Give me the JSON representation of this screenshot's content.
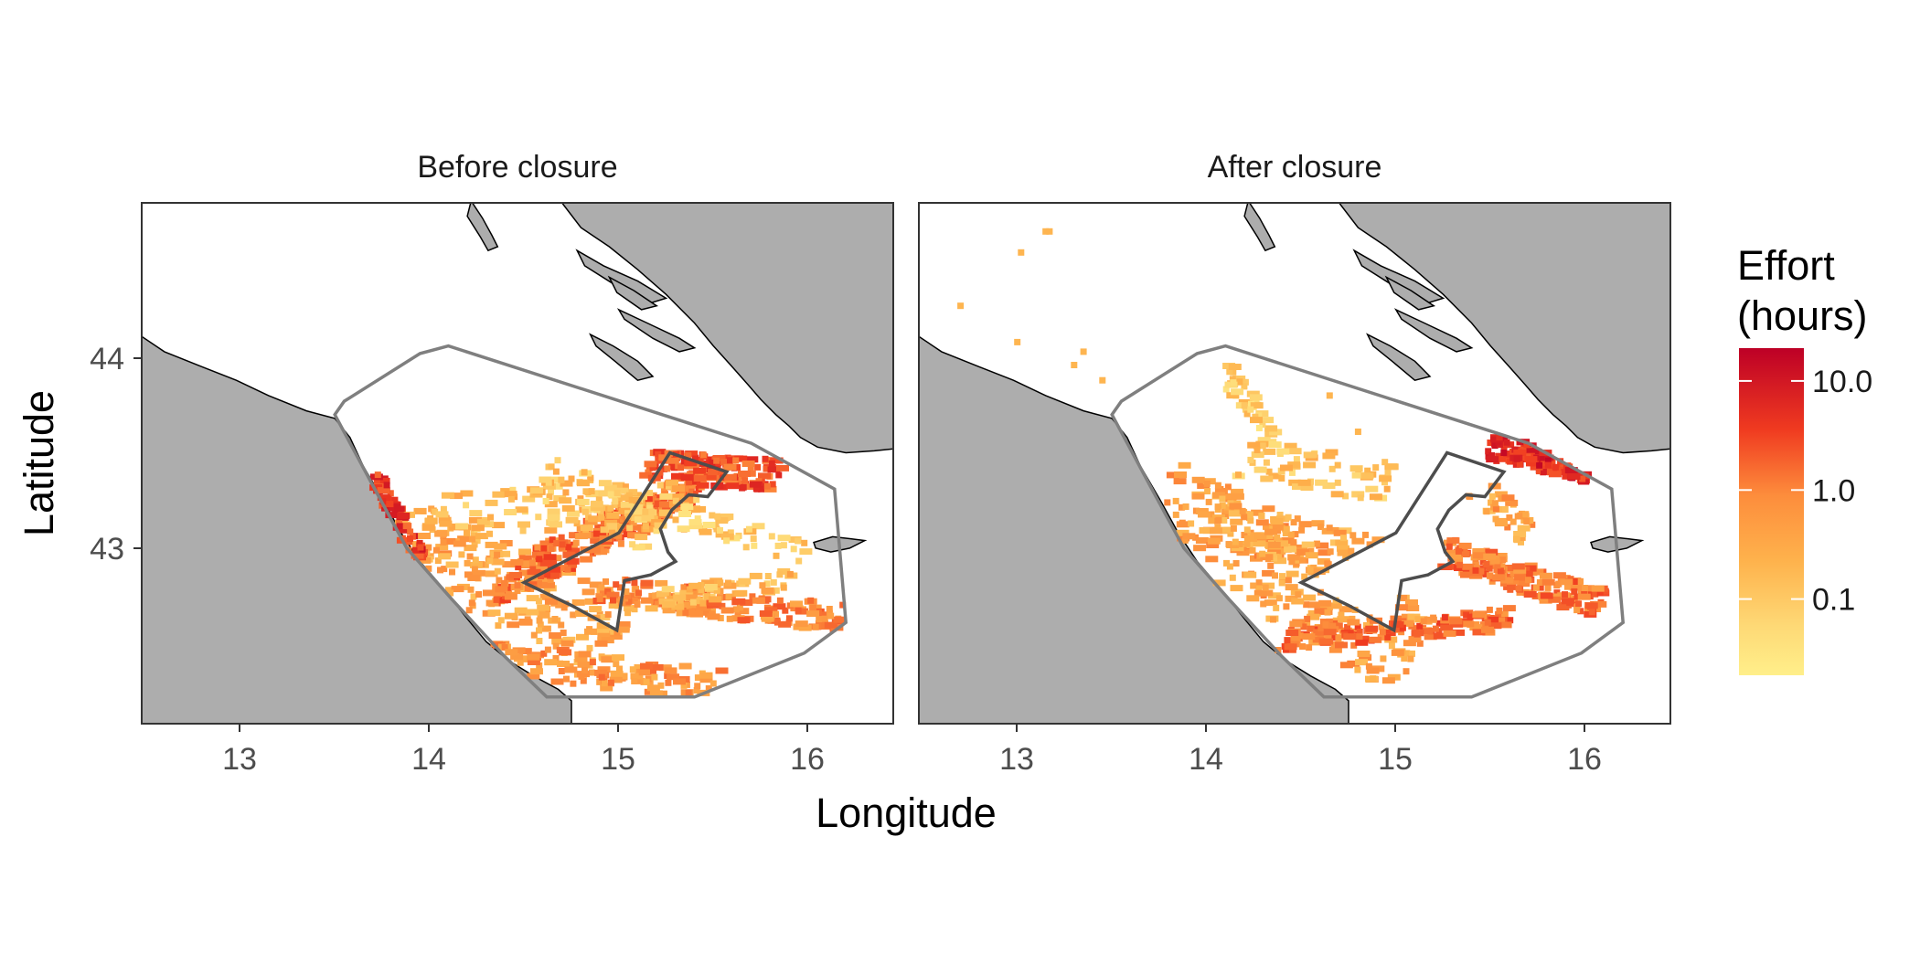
{
  "panels": [
    {
      "id": "before",
      "strip_title": "Before closure"
    },
    {
      "id": "after",
      "strip_title": "After closure"
    }
  ],
  "axes": {
    "x_title": "Longitude",
    "y_title": "Latitude",
    "x_ticks": [
      {
        "value": 13,
        "label": "13"
      },
      {
        "value": 14,
        "label": "14"
      },
      {
        "value": 15,
        "label": "15"
      },
      {
        "value": 16,
        "label": "16"
      }
    ],
    "y_ticks": [
      {
        "value": 44,
        "label": "44"
      },
      {
        "value": 43,
        "label": "43"
      }
    ],
    "x_range": [
      12.48,
      16.45
    ],
    "y_range": [
      42.1,
      44.83
    ]
  },
  "legend": {
    "title_line1": "Effort",
    "title_line2": "(hours)",
    "scale": "log10",
    "range": [
      0.02,
      20
    ],
    "color_low": "#ffef8a",
    "color_mid": "#fd8d3c",
    "color_high": "#bd0026",
    "breaks": [
      {
        "value": 10.0,
        "label": "10.0"
      },
      {
        "value": 1.0,
        "label": "1.0"
      },
      {
        "value": 0.1,
        "label": "0.1"
      }
    ]
  },
  "colors": {
    "land": "#adadad",
    "study_area_outline": "#7f7f7f",
    "closure_outline": "#4d4d4d",
    "panel_border": "#333333"
  },
  "map_data": {
    "coast_west": [
      [
        12.48,
        44.13
      ],
      [
        12.6,
        44.05
      ],
      [
        12.8,
        43.97
      ],
      [
        12.98,
        43.9
      ],
      [
        13.15,
        43.82
      ],
      [
        13.35,
        43.74
      ],
      [
        13.5,
        43.7
      ],
      [
        13.58,
        43.6
      ],
      [
        13.65,
        43.45
      ],
      [
        13.75,
        43.28
      ],
      [
        13.85,
        43.1
      ],
      [
        13.95,
        42.95
      ],
      [
        14.08,
        42.8
      ],
      [
        14.2,
        42.65
      ],
      [
        14.3,
        42.53
      ],
      [
        14.42,
        42.43
      ],
      [
        14.55,
        42.35
      ],
      [
        14.68,
        42.28
      ],
      [
        14.75,
        42.22
      ],
      [
        14.75,
        42.1
      ]
    ],
    "coast_east": [
      [
        14.7,
        44.83
      ],
      [
        14.8,
        44.7
      ],
      [
        14.95,
        44.6
      ],
      [
        15.1,
        44.48
      ],
      [
        15.25,
        44.35
      ],
      [
        15.4,
        44.2
      ],
      [
        15.5,
        44.08
      ],
      [
        15.6,
        43.97
      ],
      [
        15.68,
        43.88
      ],
      [
        15.75,
        43.8
      ],
      [
        15.83,
        43.72
      ],
      [
        15.9,
        43.66
      ],
      [
        15.96,
        43.6
      ],
      [
        16.05,
        43.55
      ],
      [
        16.2,
        43.52
      ],
      [
        16.35,
        43.53
      ],
      [
        16.45,
        43.54
      ]
    ],
    "islands": [
      [
        [
          14.22,
          44.84
        ],
        [
          14.28,
          44.75
        ],
        [
          14.33,
          44.66
        ],
        [
          14.36,
          44.6
        ],
        [
          14.31,
          44.58
        ],
        [
          14.27,
          44.65
        ],
        [
          14.2,
          44.76
        ]
      ],
      [
        [
          14.78,
          44.58
        ],
        [
          14.92,
          44.5
        ],
        [
          15.1,
          44.42
        ],
        [
          15.25,
          44.33
        ],
        [
          15.15,
          44.3
        ],
        [
          14.98,
          44.4
        ],
        [
          14.82,
          44.5
        ]
      ],
      [
        [
          14.95,
          44.44
        ],
        [
          15.08,
          44.37
        ],
        [
          15.2,
          44.29
        ],
        [
          15.12,
          44.27
        ],
        [
          14.99,
          44.36
        ]
      ],
      [
        [
          15.0,
          44.27
        ],
        [
          15.15,
          44.2
        ],
        [
          15.32,
          44.12
        ],
        [
          15.4,
          44.07
        ],
        [
          15.32,
          44.05
        ],
        [
          15.18,
          44.12
        ],
        [
          15.03,
          44.22
        ]
      ],
      [
        [
          14.85,
          44.14
        ],
        [
          14.97,
          44.08
        ],
        [
          15.1,
          44.0
        ],
        [
          15.18,
          43.92
        ],
        [
          15.1,
          43.9
        ],
        [
          14.98,
          44.0
        ],
        [
          14.88,
          44.08
        ]
      ],
      [
        [
          16.03,
          43.05
        ],
        [
          16.13,
          43.08
        ],
        [
          16.22,
          43.07
        ],
        [
          16.3,
          43.06
        ],
        [
          16.22,
          43.02
        ],
        [
          16.12,
          43.0
        ],
        [
          16.04,
          43.02
        ]
      ]
    ],
    "study_area": [
      [
        13.5,
        43.72
      ],
      [
        13.55,
        43.79
      ],
      [
        13.95,
        44.04
      ],
      [
        14.1,
        44.08
      ],
      [
        15.7,
        43.57
      ],
      [
        16.14,
        43.33
      ],
      [
        16.2,
        42.63
      ],
      [
        15.98,
        42.47
      ],
      [
        15.4,
        42.24
      ],
      [
        14.62,
        42.24
      ],
      [
        14.4,
        42.45
      ],
      [
        14.12,
        42.75
      ],
      [
        13.88,
        43.02
      ],
      [
        13.7,
        43.35
      ]
    ],
    "closure_area": [
      [
        14.5,
        42.84
      ],
      [
        15.0,
        43.1
      ],
      [
        15.27,
        43.52
      ],
      [
        15.57,
        43.42
      ],
      [
        15.47,
        43.29
      ],
      [
        15.37,
        43.3
      ],
      [
        15.28,
        43.22
      ],
      [
        15.22,
        43.12
      ],
      [
        15.26,
        43.0
      ],
      [
        15.3,
        42.95
      ],
      [
        15.17,
        42.88
      ],
      [
        15.03,
        42.85
      ],
      [
        14.99,
        42.59
      ],
      [
        14.75,
        42.72
      ]
    ],
    "effort_zones_before": [
      {
        "shape": "band",
        "a": [
          13.8,
          43.1
        ],
        "b": [
          15.0,
          42.55
        ],
        "w": 0.18,
        "n": 230,
        "value": 0.35
      },
      {
        "shape": "band",
        "a": [
          13.7,
          43.38
        ],
        "b": [
          13.95,
          42.95
        ],
        "w": 0.05,
        "n": 90,
        "value": 4.0
      },
      {
        "shape": "band",
        "a": [
          14.4,
          42.85
        ],
        "b": [
          15.45,
          43.35
        ],
        "w": 0.14,
        "n": 300,
        "value": 1.4
      },
      {
        "shape": "band",
        "a": [
          15.15,
          43.45
        ],
        "b": [
          15.85,
          43.4
        ],
        "w": 0.08,
        "n": 140,
        "value": 2.5
      },
      {
        "shape": "band",
        "a": [
          14.9,
          42.8
        ],
        "b": [
          16.2,
          42.65
        ],
        "w": 0.07,
        "n": 170,
        "value": 0.9
      },
      {
        "shape": "band",
        "a": [
          14.3,
          42.45
        ],
        "b": [
          15.5,
          42.3
        ],
        "w": 0.08,
        "n": 120,
        "value": 0.6
      },
      {
        "shape": "band",
        "a": [
          14.0,
          43.2
        ],
        "b": [
          15.4,
          43.25
        ],
        "w": 0.12,
        "n": 100,
        "value": 0.15
      },
      {
        "shape": "band",
        "a": [
          14.6,
          43.4
        ],
        "b": [
          15.2,
          43.1
        ],
        "w": 0.1,
        "n": 80,
        "value": 0.12
      },
      {
        "shape": "band",
        "a": [
          15.3,
          43.2
        ],
        "b": [
          16.0,
          43.0
        ],
        "w": 0.06,
        "n": 50,
        "value": 0.1
      },
      {
        "shape": "band",
        "a": [
          15.2,
          42.75
        ],
        "b": [
          15.9,
          42.85
        ],
        "w": 0.06,
        "n": 60,
        "value": 0.18
      }
    ],
    "effort_zones_after": [
      {
        "shape": "band",
        "a": [
          13.75,
          43.3
        ],
        "b": [
          15.1,
          42.45
        ],
        "w": 0.2,
        "n": 300,
        "value": 0.45
      },
      {
        "shape": "band",
        "a": [
          14.0,
          43.2
        ],
        "b": [
          15.0,
          42.9
        ],
        "w": 0.12,
        "n": 130,
        "value": 0.3
      },
      {
        "shape": "band",
        "a": [
          15.5,
          43.55
        ],
        "b": [
          16.05,
          43.42
        ],
        "w": 0.06,
        "n": 150,
        "value": 6.0
      },
      {
        "shape": "band",
        "a": [
          15.25,
          43.0
        ],
        "b": [
          16.1,
          42.72
        ],
        "w": 0.07,
        "n": 200,
        "value": 1.2
      },
      {
        "shape": "band",
        "a": [
          14.4,
          42.55
        ],
        "b": [
          15.6,
          42.65
        ],
        "w": 0.07,
        "n": 150,
        "value": 1.5
      },
      {
        "shape": "band",
        "a": [
          15.3,
          43.45
        ],
        "b": [
          15.7,
          43.1
        ],
        "w": 0.06,
        "n": 60,
        "value": 0.4
      },
      {
        "shape": "band",
        "a": [
          14.1,
          43.95
        ],
        "b": [
          14.35,
          43.6
        ],
        "w": 0.05,
        "n": 45,
        "value": 0.08
      },
      {
        "shape": "band",
        "a": [
          14.2,
          43.5
        ],
        "b": [
          15.0,
          43.35
        ],
        "w": 0.1,
        "n": 70,
        "value": 0.12
      },
      {
        "shape": "points",
        "pts": [
          [
            13.15,
            44.68
          ],
          [
            13.17,
            44.68
          ],
          [
            13.02,
            44.57
          ],
          [
            12.7,
            44.29
          ],
          [
            13.0,
            44.1
          ],
          [
            13.3,
            43.98
          ],
          [
            13.45,
            43.9
          ],
          [
            14.65,
            43.82
          ],
          [
            14.8,
            43.63
          ],
          [
            13.35,
            44.05
          ]
        ],
        "value": 0.2
      }
    ]
  }
}
